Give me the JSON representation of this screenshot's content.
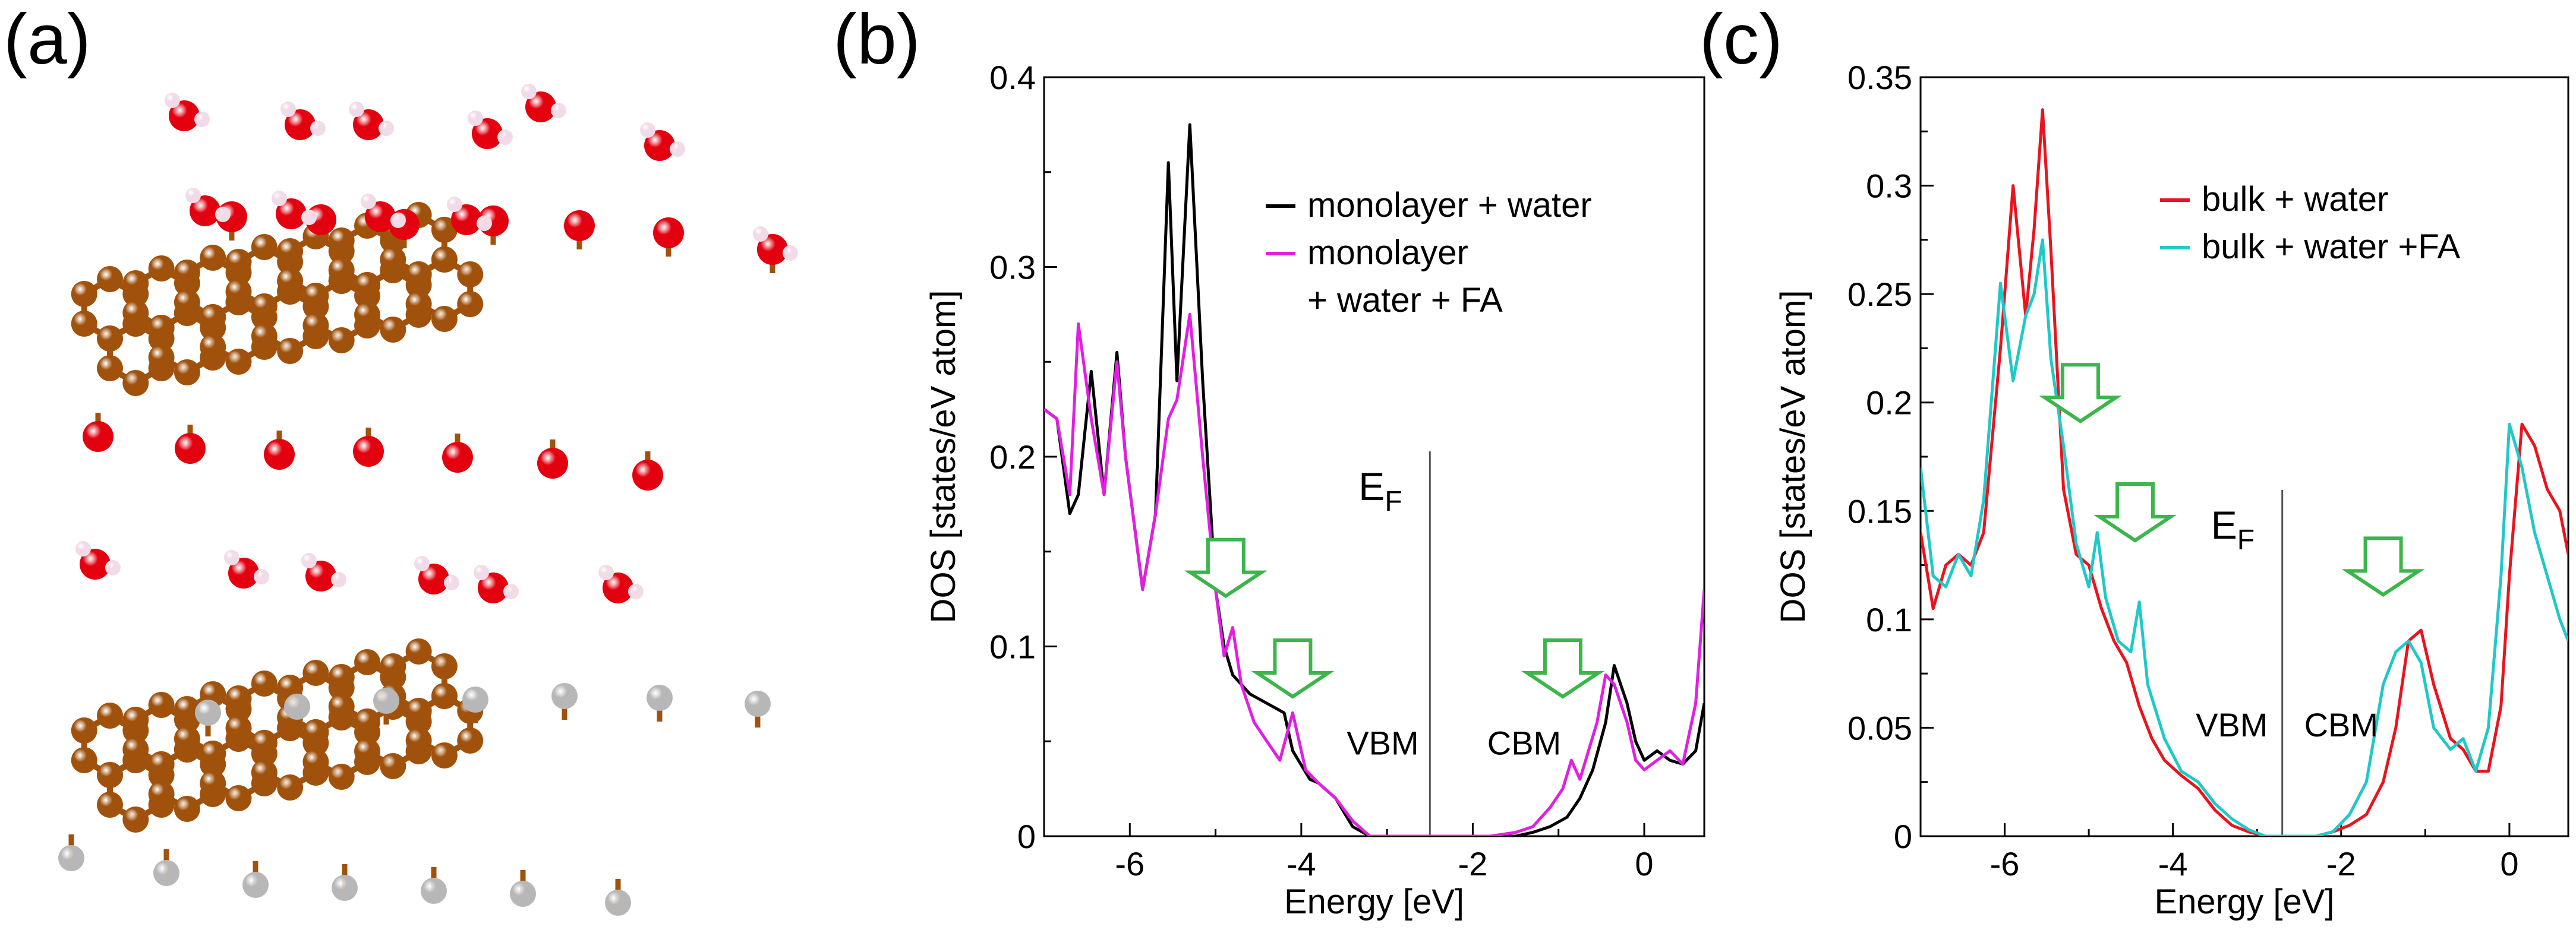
{
  "panels": {
    "a": {
      "label": "(a)"
    },
    "b": {
      "label": "(b)"
    },
    "c": {
      "label": "(c)"
    }
  },
  "molecule": {
    "atom_colors": {
      "carbon": "#a0520c",
      "oxygen": "#e3000f",
      "hydrogen": "#f2dbe8",
      "hydrogen_passivating": "#b7b7b7"
    }
  },
  "chart_data": [
    {
      "id": "b",
      "type": "line",
      "xlabel": "Energy [eV]",
      "ylabel": "DOS [states/eV atom]",
      "xlim": [
        -7.0,
        0.7
      ],
      "ylim": [
        0,
        0.4
      ],
      "xticks": [
        -6,
        -4,
        -2,
        0
      ],
      "xtick_labels": [
        "-6",
        "-4",
        "-2",
        "0"
      ],
      "yticks": [
        0,
        0.1,
        0.2,
        0.3,
        0.4
      ],
      "ytick_labels": [
        "0",
        "0.1",
        "0.2",
        "0.3",
        "0.4"
      ],
      "fermi_x": -2.5,
      "fermi_label": {
        "main": "E",
        "sub": "F"
      },
      "region_labels": [
        {
          "text": "VBM",
          "x": -3.05,
          "y": 0.043
        },
        {
          "text": "CBM",
          "x": -1.4,
          "y": 0.043
        }
      ],
      "arrows": [
        {
          "x": -4.88,
          "y": 0.125
        },
        {
          "x": -4.1,
          "y": 0.072
        },
        {
          "x": -0.95,
          "y": 0.072
        }
      ],
      "arrow_color": "#3cb54a",
      "legend": {
        "position": "top-right",
        "entries": [
          {
            "text": "monolayer + water",
            "color": "#000000"
          },
          {
            "text": "monolayer",
            "color": "#e020e0"
          },
          {
            "text": "+ water + FA",
            "color": null
          }
        ]
      },
      "series": [
        {
          "name": "monolayer + water",
          "color": "#000000",
          "x": [
            -7.0,
            -6.85,
            -6.7,
            -6.6,
            -6.45,
            -6.3,
            -6.15,
            -6.05,
            -5.85,
            -5.7,
            -5.55,
            -5.45,
            -5.3,
            -5.15,
            -5.0,
            -4.9,
            -4.8,
            -4.6,
            -4.4,
            -4.2,
            -4.1,
            -3.9,
            -3.8,
            -3.6,
            -3.4,
            -3.2,
            -2.8,
            -2.2,
            -1.8,
            -1.5,
            -1.3,
            -1.1,
            -0.9,
            -0.75,
            -0.6,
            -0.45,
            -0.35,
            -0.2,
            -0.1,
            0.0,
            0.15,
            0.3,
            0.45,
            0.6,
            0.7
          ],
          "y": [
            0.225,
            0.22,
            0.17,
            0.18,
            0.245,
            0.18,
            0.255,
            0.2,
            0.13,
            0.17,
            0.355,
            0.24,
            0.375,
            0.24,
            0.13,
            0.1,
            0.085,
            0.075,
            0.07,
            0.065,
            0.045,
            0.03,
            0.028,
            0.02,
            0.005,
            0.0,
            0.0,
            0.0,
            0.0,
            0.0,
            0.002,
            0.005,
            0.01,
            0.02,
            0.035,
            0.06,
            0.09,
            0.07,
            0.05,
            0.04,
            0.045,
            0.04,
            0.038,
            0.045,
            0.07
          ]
        },
        {
          "name": "monolayer + water + FA",
          "color": "#e020e0",
          "x": [
            -7.0,
            -6.85,
            -6.7,
            -6.6,
            -6.45,
            -6.3,
            -6.15,
            -6.05,
            -5.85,
            -5.7,
            -5.55,
            -5.45,
            -5.3,
            -5.15,
            -5.0,
            -4.9,
            -4.8,
            -4.7,
            -4.55,
            -4.4,
            -4.25,
            -4.1,
            -3.95,
            -3.8,
            -3.6,
            -3.4,
            -3.2,
            -2.8,
            -2.2,
            -1.8,
            -1.5,
            -1.3,
            -1.1,
            -0.95,
            -0.85,
            -0.75,
            -0.55,
            -0.45,
            -0.35,
            -0.2,
            -0.1,
            0.0,
            0.15,
            0.3,
            0.45,
            0.6,
            0.7
          ],
          "y": [
            0.225,
            0.22,
            0.18,
            0.27,
            0.22,
            0.18,
            0.25,
            0.2,
            0.13,
            0.17,
            0.22,
            0.23,
            0.275,
            0.2,
            0.13,
            0.095,
            0.11,
            0.08,
            0.06,
            0.05,
            0.04,
            0.065,
            0.035,
            0.028,
            0.02,
            0.008,
            0.0,
            0.0,
            0.0,
            0.0,
            0.002,
            0.005,
            0.015,
            0.025,
            0.04,
            0.03,
            0.06,
            0.085,
            0.08,
            0.06,
            0.04,
            0.035,
            0.04,
            0.045,
            0.038,
            0.07,
            0.13
          ]
        }
      ]
    },
    {
      "id": "c",
      "type": "line",
      "xlabel": "Energy [eV]",
      "ylabel": "DOS [states/eV atom]",
      "xlim": [
        -7.0,
        0.7
      ],
      "ylim": [
        0,
        0.35
      ],
      "xticks": [
        -6,
        -4,
        -2,
        0
      ],
      "xtick_labels": [
        "-6",
        "-4",
        "-2",
        "0"
      ],
      "yticks": [
        0,
        0.05,
        0.1,
        0.15,
        0.2,
        0.25,
        0.3,
        0.35
      ],
      "ytick_labels": [
        "0",
        "0.05",
        "0.1",
        "0.15",
        "0.2",
        "0.25",
        "0.3",
        "0.35"
      ],
      "fermi_x": -2.7,
      "fermi_label": {
        "main": "E",
        "sub": "F"
      },
      "region_labels": [
        {
          "text": "VBM",
          "x": -3.3,
          "y": 0.046
        },
        {
          "text": "CBM",
          "x": -2.0,
          "y": 0.046
        }
      ],
      "arrows": [
        {
          "x": -5.1,
          "y": 0.19
        },
        {
          "x": -4.45,
          "y": 0.135
        },
        {
          "x": -1.5,
          "y": 0.11
        }
      ],
      "arrow_color": "#3cb54a",
      "legend": {
        "position": "top-right",
        "entries": [
          {
            "text": "bulk + water",
            "color": "#e8141e"
          },
          {
            "text": "bulk + water +FA",
            "color": "#20c8c8"
          }
        ]
      },
      "series": [
        {
          "name": "bulk + water",
          "color": "#e8141e",
          "x": [
            -7.0,
            -6.85,
            -6.7,
            -6.55,
            -6.4,
            -6.25,
            -6.05,
            -5.9,
            -5.75,
            -5.65,
            -5.55,
            -5.45,
            -5.3,
            -5.15,
            -5.0,
            -4.85,
            -4.7,
            -4.55,
            -4.4,
            -4.25,
            -4.1,
            -3.9,
            -3.7,
            -3.5,
            -3.3,
            -3.1,
            -2.9,
            -2.7,
            -2.5,
            -2.3,
            -2.1,
            -1.9,
            -1.7,
            -1.5,
            -1.35,
            -1.2,
            -1.05,
            -0.9,
            -0.7,
            -0.55,
            -0.4,
            -0.25,
            -0.1,
            0.0,
            0.15,
            0.3,
            0.45,
            0.6,
            0.7
          ],
          "y": [
            0.14,
            0.105,
            0.125,
            0.13,
            0.125,
            0.14,
            0.225,
            0.3,
            0.24,
            0.28,
            0.335,
            0.27,
            0.16,
            0.13,
            0.125,
            0.105,
            0.09,
            0.08,
            0.06,
            0.045,
            0.035,
            0.028,
            0.022,
            0.012,
            0.005,
            0.002,
            0.0,
            0.0,
            0.0,
            0.0,
            0.002,
            0.005,
            0.01,
            0.025,
            0.05,
            0.09,
            0.095,
            0.07,
            0.045,
            0.04,
            0.03,
            0.03,
            0.06,
            0.12,
            0.19,
            0.18,
            0.16,
            0.15,
            0.13
          ]
        },
        {
          "name": "bulk + water +FA",
          "color": "#20c8c8",
          "x": [
            -7.0,
            -6.85,
            -6.7,
            -6.55,
            -6.4,
            -6.25,
            -6.05,
            -5.9,
            -5.75,
            -5.65,
            -5.55,
            -5.45,
            -5.3,
            -5.15,
            -5.0,
            -4.9,
            -4.8,
            -4.65,
            -4.5,
            -4.4,
            -4.3,
            -4.1,
            -3.9,
            -3.7,
            -3.5,
            -3.3,
            -3.1,
            -2.9,
            -2.7,
            -2.5,
            -2.3,
            -2.1,
            -1.9,
            -1.7,
            -1.5,
            -1.35,
            -1.2,
            -1.05,
            -0.9,
            -0.7,
            -0.55,
            -0.4,
            -0.25,
            -0.1,
            0.0,
            0.15,
            0.3,
            0.45,
            0.6,
            0.7
          ],
          "y": [
            0.17,
            0.12,
            0.115,
            0.13,
            0.12,
            0.155,
            0.255,
            0.21,
            0.24,
            0.25,
            0.275,
            0.22,
            0.18,
            0.135,
            0.115,
            0.14,
            0.11,
            0.09,
            0.085,
            0.108,
            0.07,
            0.045,
            0.03,
            0.025,
            0.015,
            0.008,
            0.003,
            0.0,
            0.0,
            0.0,
            0.0,
            0.002,
            0.01,
            0.025,
            0.07,
            0.085,
            0.09,
            0.08,
            0.05,
            0.04,
            0.045,
            0.03,
            0.05,
            0.12,
            0.19,
            0.17,
            0.14,
            0.12,
            0.1,
            0.09
          ]
        }
      ]
    }
  ]
}
